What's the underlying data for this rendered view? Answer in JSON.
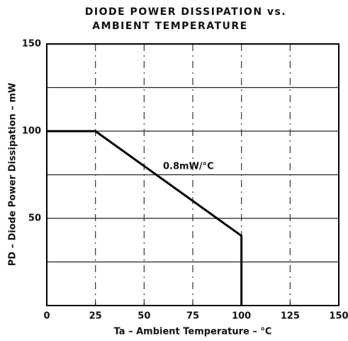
{
  "chart_data": {
    "type": "line",
    "title": [
      "DIODE POWER DISSIPATION vs.",
      "AMBIENT TEMPERATURE"
    ],
    "xlabel": "Ta – Ambient Temperature – °C",
    "ylabel": "PD – Diode Power Dissipation – mW",
    "annotation": "0.8mW/°C",
    "x": [
      0,
      25,
      100,
      100
    ],
    "series": [
      {
        "color": "#000000",
        "values": [
          100,
          100,
          40,
          0
        ]
      }
    ],
    "xlim": [
      0,
      150
    ],
    "xticks": [
      0,
      25,
      50,
      75,
      100,
      125,
      150
    ],
    "ylim": [
      0,
      150
    ],
    "yticks": [
      50,
      100,
      150
    ],
    "ygrid": [
      25,
      50,
      75,
      100,
      125
    ],
    "xgrid": [
      25,
      50,
      75,
      100,
      125
    ],
    "grid": true
  }
}
